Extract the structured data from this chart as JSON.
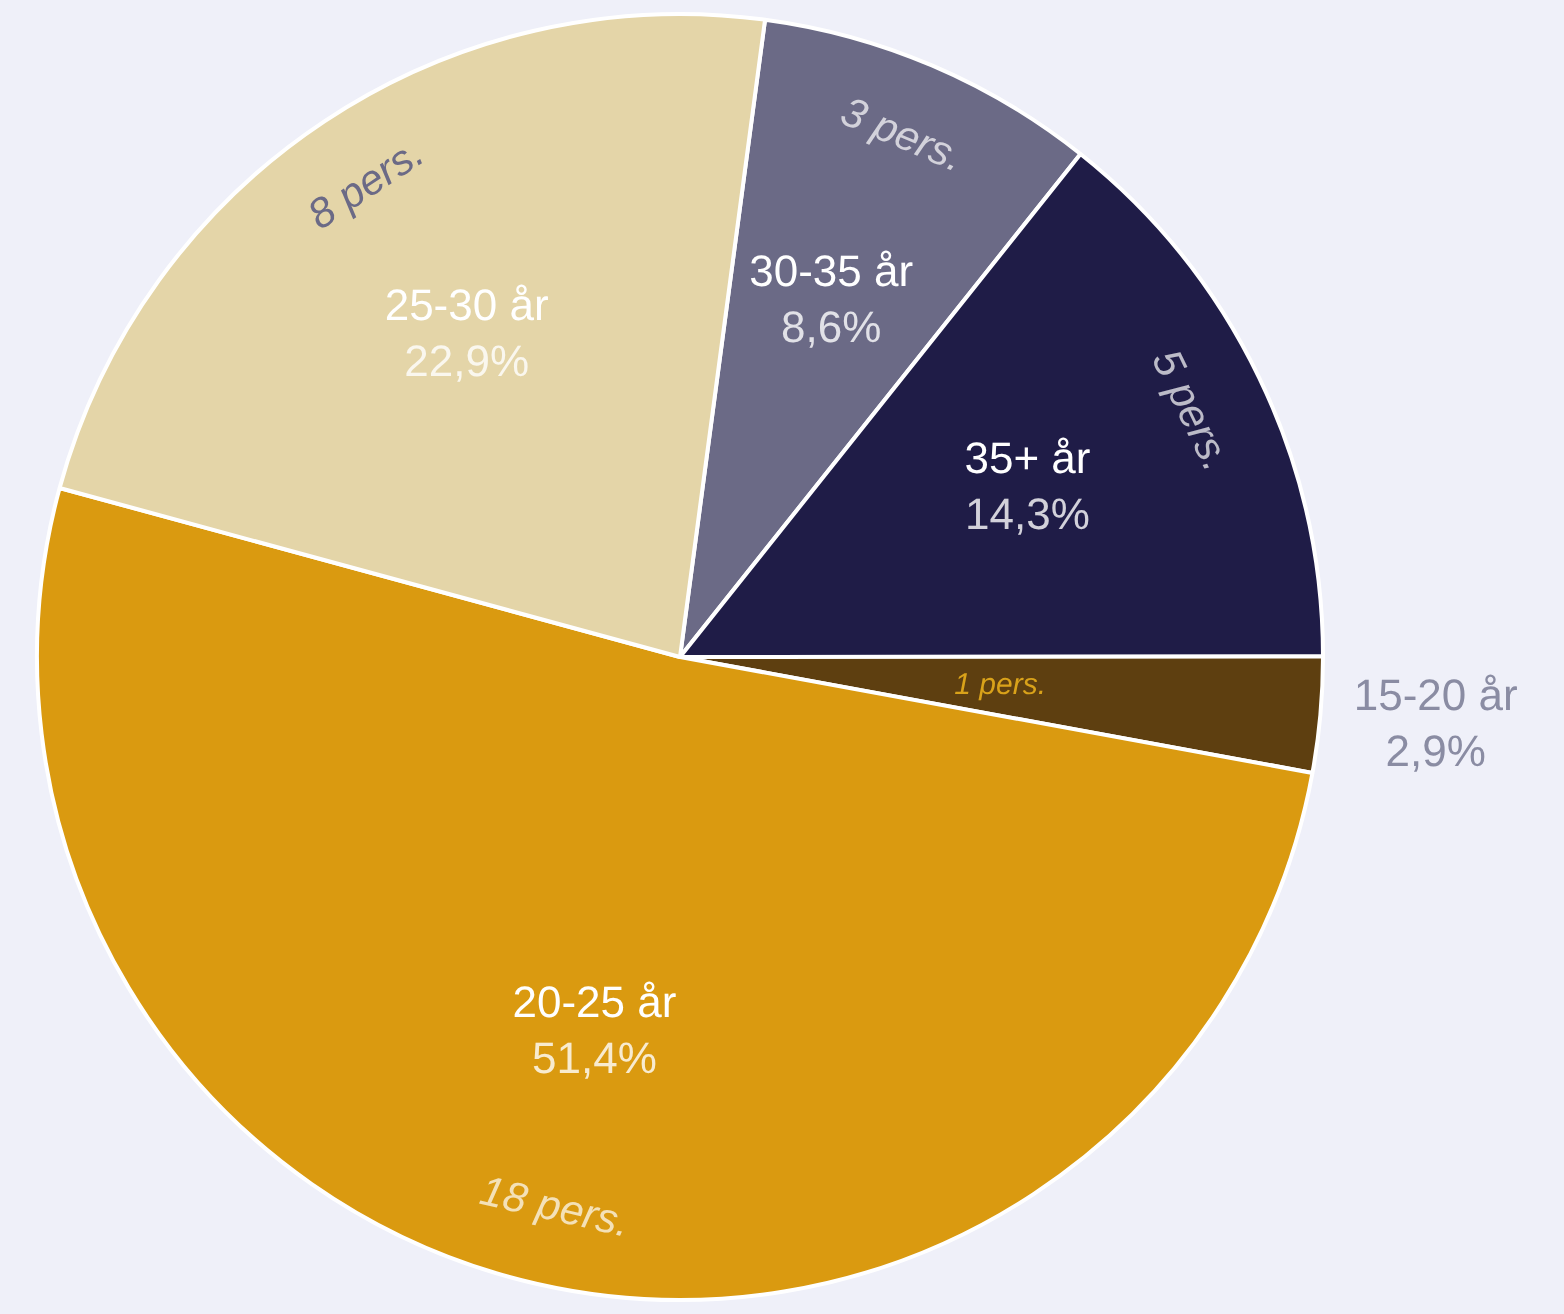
{
  "chart_data": {
    "type": "pie",
    "categories": [
      "30-35 år",
      "35+ år",
      "15-20 år",
      "20-25 år",
      "25-30 år"
    ],
    "values": [
      8.6,
      14.3,
      2.9,
      51.4,
      22.9
    ],
    "colors": [
      "#6b6a86",
      "#1f1c47",
      "#5e3f10",
      "#da9a10",
      "#e4d5a8"
    ],
    "value_labels": [
      "8,6%",
      "14,3%",
      "2,9%",
      "51,4%",
      "22,9%"
    ],
    "annotations": [
      "3 pers.",
      "5 pers.",
      "1 pers.",
      "18 pers.",
      "8 pers."
    ],
    "legend": false
  }
}
